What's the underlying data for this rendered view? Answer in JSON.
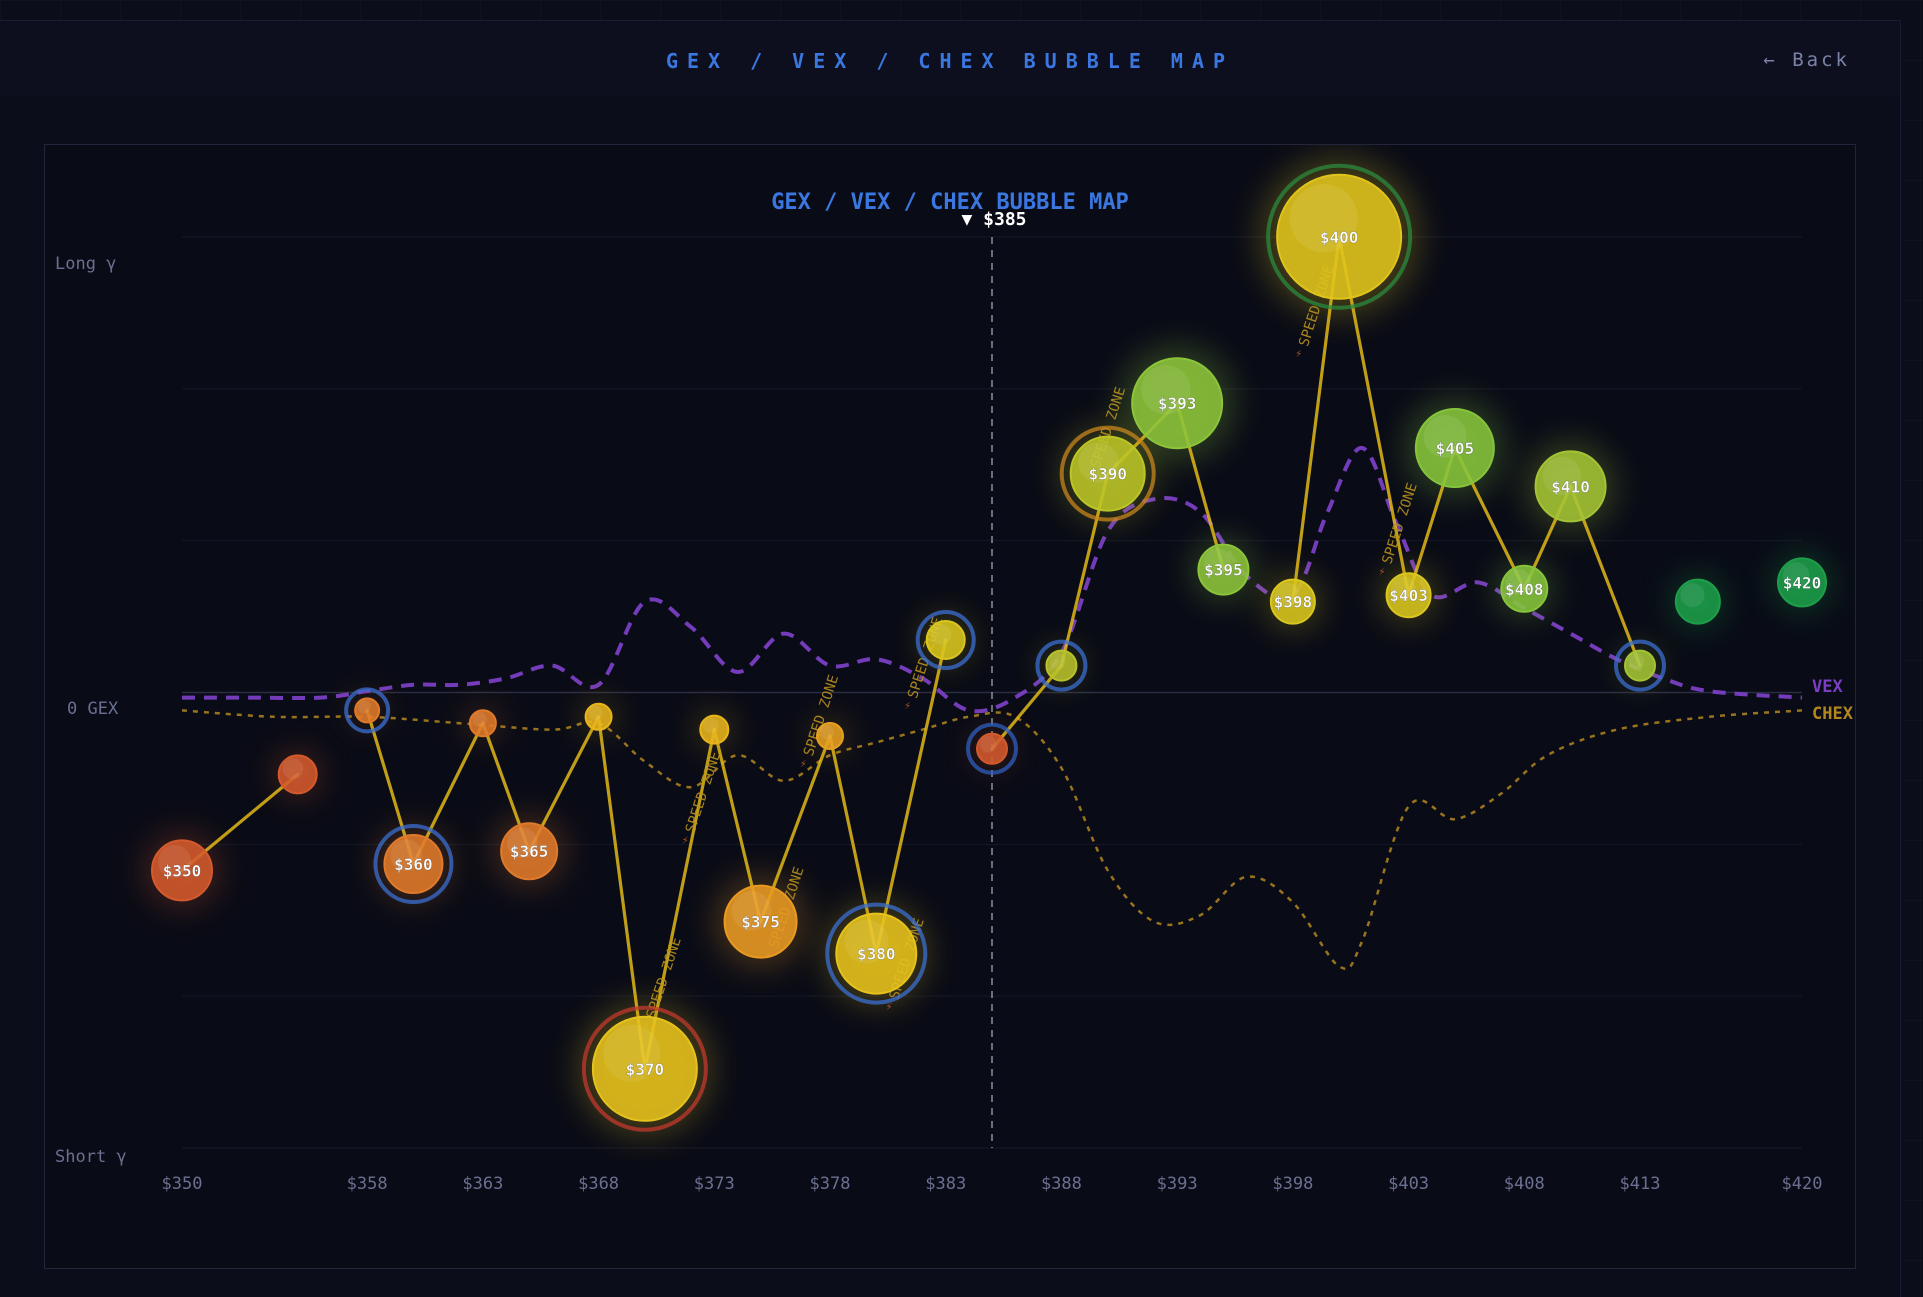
{
  "header": {
    "title": "GEX / VEX / CHEX BUBBLE MAP",
    "back_label": "← Back"
  },
  "colors": {
    "background": "#090b16",
    "accent_blue": "#3b77e0",
    "vex_line": "#7a3fc4",
    "chex_line": "#b3871f",
    "speed_link": "#e2b818",
    "negative_gex": "#d45a2c",
    "positive_gex": "#7cc23a",
    "strong_positive": "#1d9e4a"
  },
  "chart_data": {
    "type": "scatter",
    "title": "GEX / VEX / CHEX BUBBLE MAP",
    "spot_label": "▼ $385",
    "spot_price": 385,
    "y_axis": {
      "top_label": "Long γ",
      "zero_label": "0 GEX",
      "bottom_label": "Short γ"
    },
    "x_ticks": [
      "$350",
      "$358",
      "$363",
      "$368",
      "$373",
      "$378",
      "$383",
      "$388",
      "$393",
      "$398",
      "$403",
      "$408",
      "$413",
      "$420"
    ],
    "xlim": [
      350,
      420
    ],
    "legend": [
      {
        "name": "VEX",
        "color": "#7a3fc4"
      },
      {
        "name": "CHEX",
        "color": "#b3871f"
      }
    ],
    "annotation": "SPEED ZONE",
    "bubbles": [
      {
        "strike": 350,
        "label": "$350",
        "gex": -0.26,
        "size": 30,
        "color": "#d45a2c"
      },
      {
        "strike": 355,
        "label": "",
        "gex": -0.11,
        "size": 19,
        "color": "#d45a2c"
      },
      {
        "strike": 358,
        "label": "",
        "gex": -0.01,
        "size": 12,
        "color": "#e07a2a",
        "ring": "#3b6fd1"
      },
      {
        "strike": 360,
        "label": "$360",
        "gex": -0.25,
        "size": 29,
        "color": "#e07a2a",
        "ring": "#3b6fd1"
      },
      {
        "strike": 363,
        "label": "",
        "gex": -0.03,
        "size": 13,
        "color": "#e07a2a"
      },
      {
        "strike": 365,
        "label": "$365",
        "gex": -0.23,
        "size": 28,
        "color": "#e07a2a"
      },
      {
        "strike": 368,
        "label": "",
        "gex": -0.02,
        "size": 13,
        "color": "#e8b51c"
      },
      {
        "strike": 370,
        "label": "$370",
        "gex": -0.57,
        "size": 52,
        "color": "#e6c21c",
        "ring": "#c23a2e"
      },
      {
        "strike": 373,
        "label": "",
        "gex": -0.04,
        "size": 14,
        "color": "#e8b51c"
      },
      {
        "strike": 375,
        "label": "$375",
        "gex": -0.34,
        "size": 36,
        "color": "#e89a22"
      },
      {
        "strike": 378,
        "label": "",
        "gex": -0.05,
        "size": 13,
        "color": "#e8a022"
      },
      {
        "strike": 380,
        "label": "$380",
        "gex": -0.39,
        "size": 40,
        "color": "#e6c21c",
        "ring": "#3b6fd1"
      },
      {
        "strike": 383,
        "label": "",
        "gex": 0.1,
        "size": 19,
        "color": "#d9c61e",
        "ring": "#3b6fd1"
      },
      {
        "strike": 385,
        "label": "",
        "gex": -0.07,
        "size": 15,
        "color": "#d45a2c",
        "ring": "#2f5fc0"
      },
      {
        "strike": 388,
        "label": "",
        "gex": 0.06,
        "size": 15,
        "color": "#b8c22a",
        "ring": "#3b6fd1"
      },
      {
        "strike": 390,
        "label": "$390",
        "gex": 0.36,
        "size": 37,
        "color": "#bcc526",
        "ring": "#c8861c"
      },
      {
        "strike": 393,
        "label": "$393",
        "gex": 0.47,
        "size": 45,
        "color": "#8cc43a"
      },
      {
        "strike": 395,
        "label": "$395",
        "gex": 0.21,
        "size": 25,
        "color": "#8cc43a"
      },
      {
        "strike": 398,
        "label": "$398",
        "gex": 0.16,
        "size": 22,
        "color": "#d9c61e"
      },
      {
        "strike": 400,
        "label": "$400",
        "gex": 0.73,
        "size": 62,
        "color": "#e0c41c",
        "ring": "#2b8a3e"
      },
      {
        "strike": 403,
        "label": "$403",
        "gex": 0.17,
        "size": 22,
        "color": "#d9c61e"
      },
      {
        "strike": 405,
        "label": "$405",
        "gex": 0.4,
        "size": 39,
        "color": "#86c43c"
      },
      {
        "strike": 408,
        "label": "$408",
        "gex": 0.18,
        "size": 23,
        "color": "#86c43c"
      },
      {
        "strike": 410,
        "label": "$410",
        "gex": 0.34,
        "size": 35,
        "color": "#a4c434"
      },
      {
        "strike": 413,
        "label": "",
        "gex": 0.06,
        "size": 15,
        "color": "#a4c434",
        "ring": "#3b6fd1"
      },
      {
        "strike": 415.5,
        "label": "",
        "gex": 0.16,
        "size": 22,
        "color": "#1d9e4a"
      },
      {
        "strike": 420,
        "label": "$420",
        "gex": 0.19,
        "size": 24,
        "color": "#1d9e4a"
      }
    ],
    "speed_links": [
      [
        350,
        355
      ],
      [
        358,
        360
      ],
      [
        360,
        363
      ],
      [
        363,
        365
      ],
      [
        365,
        368
      ],
      [
        368,
        370
      ],
      [
        370,
        373
      ],
      [
        373,
        375
      ],
      [
        375,
        378
      ],
      [
        378,
        380
      ],
      [
        380,
        383
      ],
      [
        385,
        388
      ],
      [
        388,
        390
      ],
      [
        390,
        393
      ],
      [
        393,
        395
      ],
      [
        398,
        400
      ],
      [
        400,
        403
      ],
      [
        403,
        405
      ],
      [
        405,
        408
      ],
      [
        408,
        410
      ],
      [
        410,
        413
      ]
    ],
    "speed_zone_labels": [
      {
        "strike": 371,
        "gex": -0.43
      },
      {
        "strike": 372.7,
        "gex": -0.14
      },
      {
        "strike": 376.3,
        "gex": -0.32
      },
      {
        "strike": 377.8,
        "gex": -0.02
      },
      {
        "strike": 381.5,
        "gex": -0.4
      },
      {
        "strike": 382.3,
        "gex": 0.07
      },
      {
        "strike": 390.2,
        "gex": 0.43
      },
      {
        "strike": 399.2,
        "gex": 0.62
      },
      {
        "strike": 402.8,
        "gex": 0.28
      }
    ],
    "vex_curve": [
      [
        350,
        0.01
      ],
      [
        353,
        0.01
      ],
      [
        356,
        0.01
      ],
      [
        358,
        0.02
      ],
      [
        360,
        0.03
      ],
      [
        362,
        0.03
      ],
      [
        364,
        0.04
      ],
      [
        366,
        0.06
      ],
      [
        368,
        0.03
      ],
      [
        370,
        0.16
      ],
      [
        372,
        0.12
      ],
      [
        374,
        0.05
      ],
      [
        376,
        0.11
      ],
      [
        378,
        0.06
      ],
      [
        380,
        0.07
      ],
      [
        382,
        0.04
      ],
      [
        384,
        -0.01
      ],
      [
        386,
        0.01
      ],
      [
        388,
        0.08
      ],
      [
        390,
        0.27
      ],
      [
        392,
        0.32
      ],
      [
        394,
        0.3
      ],
      [
        396,
        0.2
      ],
      [
        398,
        0.17
      ],
      [
        399.5,
        0.3
      ],
      [
        401,
        0.4
      ],
      [
        402.5,
        0.28
      ],
      [
        404,
        0.17
      ],
      [
        406,
        0.19
      ],
      [
        408,
        0.15
      ],
      [
        410,
        0.11
      ],
      [
        412,
        0.07
      ],
      [
        414,
        0.04
      ],
      [
        416,
        0.02
      ],
      [
        420,
        0.01
      ]
    ],
    "chex_curve": [
      [
        350,
        -0.01
      ],
      [
        354,
        -0.02
      ],
      [
        358,
        -0.02
      ],
      [
        362,
        -0.03
      ],
      [
        366,
        -0.04
      ],
      [
        368,
        -0.03
      ],
      [
        370,
        -0.09
      ],
      [
        372,
        -0.13
      ],
      [
        374,
        -0.08
      ],
      [
        376,
        -0.12
      ],
      [
        378,
        -0.08
      ],
      [
        380,
        -0.06
      ],
      [
        382,
        -0.04
      ],
      [
        384,
        -0.02
      ],
      [
        386,
        -0.02
      ],
      [
        388,
        -0.1
      ],
      [
        390,
        -0.26
      ],
      [
        392,
        -0.34
      ],
      [
        394,
        -0.33
      ],
      [
        396,
        -0.27
      ],
      [
        398,
        -0.31
      ],
      [
        400,
        -0.41
      ],
      [
        401,
        -0.37
      ],
      [
        403,
        -0.16
      ],
      [
        405,
        -0.18
      ],
      [
        407,
        -0.14
      ],
      [
        409,
        -0.08
      ],
      [
        412,
        -0.04
      ],
      [
        416,
        -0.02
      ],
      [
        420,
        -0.01
      ]
    ]
  }
}
